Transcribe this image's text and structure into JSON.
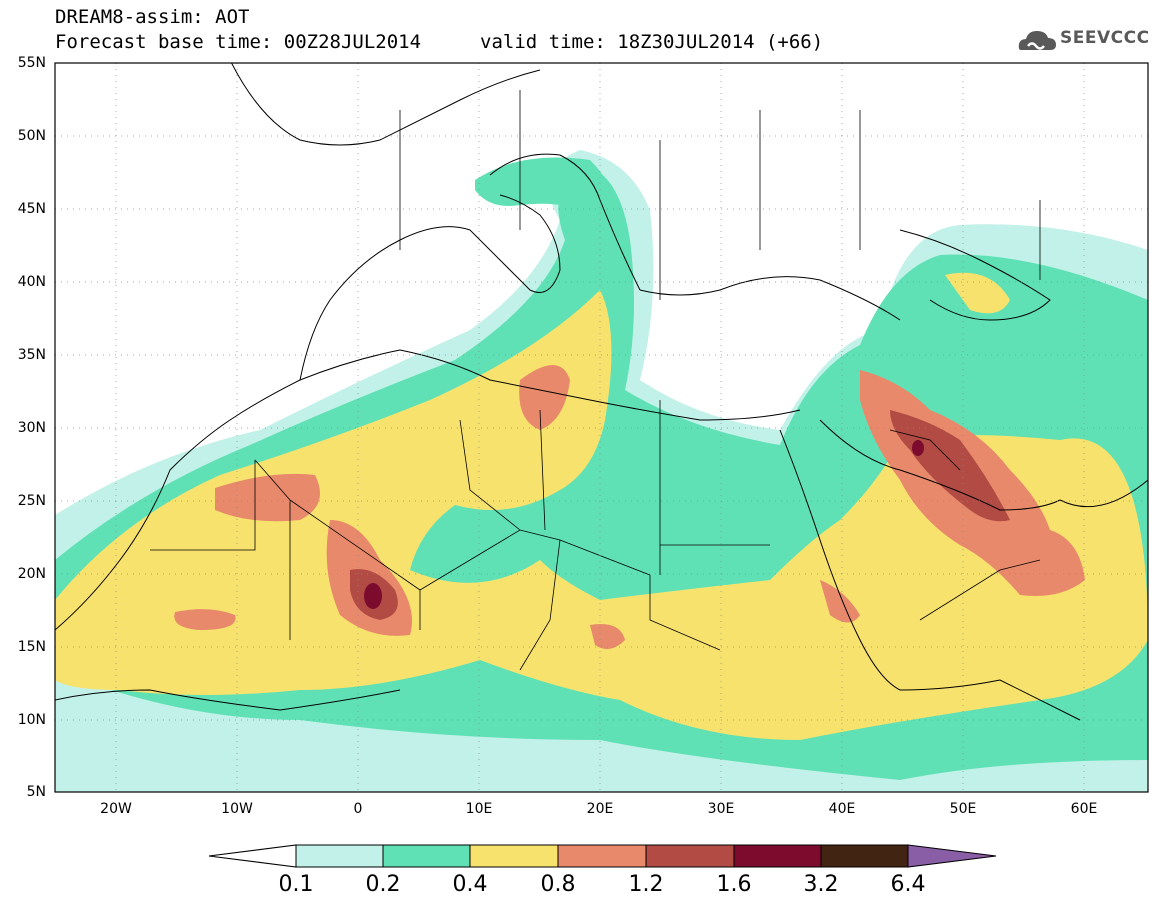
{
  "header": {
    "title_line1": "DREAM8-assim: AOT",
    "title_line2_left": "Forecast base time: 00Z28JUL2014",
    "title_line2_right": "valid time: 18Z30JUL2014 (+66)",
    "logo_text": "SEEVCCC",
    "logo_icon": "cloud-icon"
  },
  "map": {
    "lat_labels": [
      "55N",
      "50N",
      "45N",
      "40N",
      "35N",
      "30N",
      "25N",
      "20N",
      "15N",
      "10N",
      "5N"
    ],
    "lon_labels": [
      "20W",
      "10W",
      "0",
      "10E",
      "20E",
      "30E",
      "40E",
      "50E",
      "60E"
    ],
    "lat_range": [
      5,
      55
    ],
    "lon_range": [
      -25,
      65
    ],
    "grid": true
  },
  "colorbar": {
    "labels": [
      "0.1",
      "0.2",
      "0.4",
      "0.8",
      "1.2",
      "1.6",
      "3.2",
      "6.4"
    ],
    "colors": [
      "#ffffff",
      "#c1f1e8",
      "#5fe1b5",
      "#f8e26e",
      "#e7896a",
      "#b14b44",
      "#7c0b2e",
      "#412412",
      "#8a5ea6"
    ]
  }
}
